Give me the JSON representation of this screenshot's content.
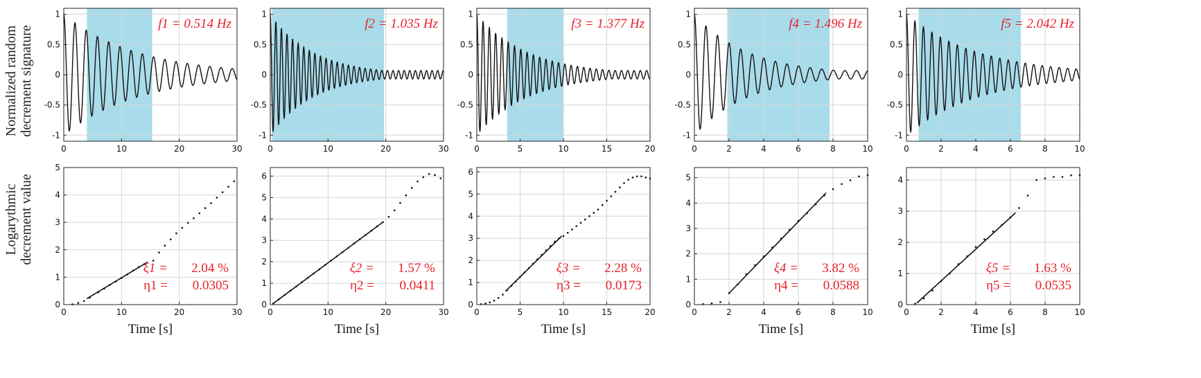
{
  "figure": {
    "ylabel_top": [
      "Normalized random",
      "decrement signature"
    ],
    "ylabel_bottom": [
      "Logarythmic",
      "decrement value"
    ],
    "xlabel": "Time [s]"
  },
  "colors": {
    "band": "#a9dcea",
    "annotation": "#e8202a",
    "trace": "#111111",
    "grid": "#d6d6d6"
  },
  "chart_data": [
    {
      "type": "line",
      "mode": 1,
      "title": "Normalized random decrement signature",
      "freq_label": "f1 = 0.514 Hz",
      "freq": 0.514,
      "xlim": [
        0,
        30
      ],
      "xticks": [
        0,
        10,
        20,
        30
      ],
      "ylim": [
        -1.1,
        1.1
      ],
      "yticks": [
        -1,
        -0.5,
        0,
        0.5,
        1
      ],
      "ytick_labels": [
        "-1",
        "-0.5",
        "0",
        "0.5",
        "1"
      ],
      "fit_window": [
        4,
        15.3
      ],
      "decay_rate": 0.078,
      "log_decrement": {
        "type": "scatter",
        "xlim": [
          0,
          30
        ],
        "xticks": [
          0,
          10,
          20,
          30
        ],
        "ylim": [
          0,
          5
        ],
        "yticks": [
          0,
          1,
          2,
          3,
          4,
          5
        ],
        "xlabel": "Time [s]",
        "fit_line": [
          [
            4,
            0.22
          ],
          [
            14.5,
            1.55
          ]
        ],
        "points": [
          [
            1.5,
            0.01
          ],
          [
            2.5,
            0.06
          ],
          [
            3.5,
            0.13
          ],
          [
            4.5,
            0.25
          ],
          [
            6,
            0.45
          ],
          [
            7,
            0.58
          ],
          [
            8,
            0.72
          ],
          [
            9,
            0.84
          ],
          [
            10,
            0.97
          ],
          [
            11,
            1.1
          ],
          [
            12,
            1.24
          ],
          [
            13,
            1.37
          ],
          [
            14,
            1.48
          ],
          [
            15.5,
            1.6
          ],
          [
            16.5,
            1.9
          ],
          [
            17.5,
            2.15
          ],
          [
            18.5,
            2.38
          ],
          [
            19.5,
            2.6
          ],
          [
            20.5,
            2.8
          ],
          [
            21.5,
            2.98
          ],
          [
            22.5,
            3.15
          ],
          [
            23.5,
            3.33
          ],
          [
            24.5,
            3.52
          ],
          [
            25.5,
            3.7
          ],
          [
            26.5,
            3.9
          ],
          [
            27.5,
            4.1
          ],
          [
            28.5,
            4.3
          ],
          [
            29.5,
            4.5
          ]
        ],
        "zeta_label": "ξ1 =",
        "zeta_value": "2.04 %",
        "eta_label": "η1 =",
        "eta_value": "0.0305"
      }
    },
    {
      "type": "line",
      "mode": 2,
      "title": "Normalized random decrement signature",
      "freq_label": "f2 = 1.035 Hz",
      "freq": 1.035,
      "xlim": [
        0,
        30
      ],
      "xticks": [
        0,
        10,
        20,
        30
      ],
      "ylim": [
        -1.1,
        1.1
      ],
      "yticks": [
        -1,
        -0.5,
        0,
        0.5,
        1
      ],
      "ytick_labels": [
        "-1",
        "-0.5",
        "0",
        "0.5",
        "1"
      ],
      "fit_window": [
        0.3,
        19.7
      ],
      "decay_rate": 0.135,
      "log_decrement": {
        "type": "scatter",
        "xlim": [
          0,
          30
        ],
        "xticks": [
          0,
          10,
          20,
          30
        ],
        "ylim": [
          0,
          6.4
        ],
        "yticks": [
          0,
          1,
          2,
          3,
          4,
          5,
          6
        ],
        "xlabel": "Time [s]",
        "fit_line": [
          [
            0.5,
            0.05
          ],
          [
            19.5,
            3.85
          ]
        ],
        "points": [
          [
            0.5,
            0.05
          ],
          [
            1.5,
            0.25
          ],
          [
            2.5,
            0.45
          ],
          [
            3.5,
            0.65
          ],
          [
            4.5,
            0.85
          ],
          [
            5.5,
            1.05
          ],
          [
            6.5,
            1.25
          ],
          [
            7.5,
            1.45
          ],
          [
            8.5,
            1.65
          ],
          [
            9.5,
            1.85
          ],
          [
            10.5,
            2.05
          ],
          [
            11.5,
            2.25
          ],
          [
            12.5,
            2.45
          ],
          [
            13.5,
            2.65
          ],
          [
            14.5,
            2.85
          ],
          [
            15.5,
            3.05
          ],
          [
            16.5,
            3.25
          ],
          [
            17.5,
            3.45
          ],
          [
            18.5,
            3.65
          ],
          [
            19.5,
            3.85
          ],
          [
            20.5,
            4.1
          ],
          [
            21.5,
            4.4
          ],
          [
            22.5,
            4.75
          ],
          [
            23.5,
            5.1
          ],
          [
            24.5,
            5.45
          ],
          [
            25.5,
            5.75
          ],
          [
            26.5,
            5.95
          ],
          [
            27.5,
            6.1
          ],
          [
            28.5,
            6.05
          ],
          [
            29.5,
            5.9
          ]
        ],
        "zeta_label": "ξ2 =",
        "zeta_value": "1.57 %",
        "eta_label": "η2 =",
        "eta_value": "0.0411"
      }
    },
    {
      "type": "line",
      "mode": 3,
      "title": "Normalized random decrement signature",
      "freq_label": "f3 = 1.377 Hz",
      "freq": 1.377,
      "xlim": [
        0,
        20
      ],
      "xticks": [
        0,
        5,
        10,
        15,
        20
      ],
      "ylim": [
        -1.1,
        1.1
      ],
      "yticks": [
        -1,
        -0.5,
        0,
        0.5,
        1
      ],
      "ytick_labels": [
        "-1",
        "-0.5",
        "0",
        "0.5",
        "1"
      ],
      "fit_window": [
        3.5,
        10
      ],
      "decay_rate": 0.17,
      "log_decrement": {
        "type": "scatter",
        "xlim": [
          0,
          20
        ],
        "xticks": [
          0,
          5,
          10,
          15,
          20
        ],
        "ylim": [
          0,
          6.2
        ],
        "yticks": [
          0,
          1,
          2,
          3,
          4,
          5,
          6
        ],
        "xlabel": "Time [s]",
        "fit_line": [
          [
            3.3,
            0.6
          ],
          [
            9.8,
            3.1
          ]
        ],
        "points": [
          [
            0.5,
            0.02
          ],
          [
            1,
            0.05
          ],
          [
            1.5,
            0.1
          ],
          [
            2,
            0.18
          ],
          [
            2.5,
            0.3
          ],
          [
            3,
            0.45
          ],
          [
            3.5,
            0.65
          ],
          [
            4,
            0.85
          ],
          [
            4.5,
            1.05
          ],
          [
            5,
            1.25
          ],
          [
            5.5,
            1.45
          ],
          [
            6,
            1.65
          ],
          [
            6.5,
            1.85
          ],
          [
            7,
            2.05
          ],
          [
            7.5,
            2.25
          ],
          [
            8,
            2.45
          ],
          [
            8.5,
            2.65
          ],
          [
            9,
            2.85
          ],
          [
            9.5,
            3.0
          ],
          [
            10,
            3.1
          ],
          [
            10.5,
            3.25
          ],
          [
            11,
            3.4
          ],
          [
            11.5,
            3.55
          ],
          [
            12,
            3.7
          ],
          [
            12.5,
            3.85
          ],
          [
            13,
            4.0
          ],
          [
            13.5,
            4.15
          ],
          [
            14,
            4.3
          ],
          [
            14.5,
            4.5
          ],
          [
            15,
            4.7
          ],
          [
            15.5,
            4.9
          ],
          [
            16,
            5.1
          ],
          [
            16.5,
            5.3
          ],
          [
            17,
            5.5
          ],
          [
            17.5,
            5.65
          ],
          [
            18,
            5.75
          ],
          [
            18.5,
            5.8
          ],
          [
            19,
            5.8
          ],
          [
            19.5,
            5.75
          ],
          [
            20,
            5.7
          ]
        ],
        "zeta_label": "ξ3 =",
        "zeta_value": "2.28 %",
        "eta_label": "η3 =",
        "eta_value": "0.0173"
      }
    },
    {
      "type": "line",
      "mode": 4,
      "title": "Normalized random decrement signature",
      "freq_label": "f4 = 1.496 Hz",
      "freq": 1.496,
      "xlim": [
        0,
        10
      ],
      "xticks": [
        0,
        2,
        4,
        6,
        8,
        10
      ],
      "ylim": [
        -1.1,
        1.1
      ],
      "yticks": [
        -1,
        -0.5,
        0,
        0.5,
        1
      ],
      "ytick_labels": [
        "-1",
        "-0.5",
        "0",
        "0.5",
        "1"
      ],
      "fit_window": [
        1.9,
        7.8
      ],
      "decay_rate": 0.32,
      "log_decrement": {
        "type": "scatter",
        "xlim": [
          0,
          10
        ],
        "xticks": [
          0,
          2,
          4,
          6,
          8,
          10
        ],
        "ylim": [
          0,
          5.4
        ],
        "yticks": [
          0,
          1,
          2,
          3,
          4,
          5
        ],
        "xlabel": "Time [s]",
        "fit_line": [
          [
            2,
            0.45
          ],
          [
            7.6,
            4.4
          ]
        ],
        "points": [
          [
            0.5,
            0.02
          ],
          [
            1,
            0.05
          ],
          [
            1.5,
            0.1
          ],
          [
            2,
            0.45
          ],
          [
            2.5,
            0.8
          ],
          [
            3,
            1.2
          ],
          [
            3.5,
            1.55
          ],
          [
            4,
            1.9
          ],
          [
            4.5,
            2.25
          ],
          [
            5,
            2.6
          ],
          [
            5.5,
            2.95
          ],
          [
            6,
            3.3
          ],
          [
            6.5,
            3.6
          ],
          [
            7,
            3.95
          ],
          [
            7.5,
            4.3
          ],
          [
            8,
            4.55
          ],
          [
            8.5,
            4.75
          ],
          [
            9,
            4.9
          ],
          [
            9.5,
            5.05
          ],
          [
            10,
            5.1
          ]
        ],
        "zeta_label": "ξ4 =",
        "zeta_value": "3.82 %",
        "eta_label": "η4 =",
        "eta_value": "0.0588"
      }
    },
    {
      "type": "line",
      "mode": 5,
      "title": "Normalized random decrement signature",
      "freq_label": "f5 = 2.042 Hz",
      "freq": 2.042,
      "xlim": [
        0,
        10
      ],
      "xticks": [
        0,
        2,
        4,
        6,
        8,
        10
      ],
      "ylim": [
        -1.1,
        1.1
      ],
      "yticks": [
        -1,
        -0.5,
        0,
        0.5,
        1
      ],
      "ytick_labels": [
        "-1",
        "-0.5",
        "0",
        "0.5",
        "1"
      ],
      "fit_window": [
        0.7,
        6.6
      ],
      "decay_rate": 0.24,
      "log_decrement": {
        "type": "scatter",
        "xlim": [
          0,
          10
        ],
        "xticks": [
          0,
          2,
          4,
          6,
          8,
          10
        ],
        "ylim": [
          0,
          4.4
        ],
        "yticks": [
          0,
          1,
          2,
          3,
          4
        ],
        "xlabel": "Time [s]",
        "fit_line": [
          [
            0.6,
            0.05
          ],
          [
            6.3,
            2.95
          ]
        ],
        "points": [
          [
            0.5,
            0.03
          ],
          [
            1,
            0.2
          ],
          [
            1.5,
            0.45
          ],
          [
            2,
            0.75
          ],
          [
            2.5,
            1.0
          ],
          [
            3,
            1.3
          ],
          [
            3.5,
            1.55
          ],
          [
            4,
            1.85
          ],
          [
            4.5,
            2.1
          ],
          [
            5,
            2.35
          ],
          [
            5.5,
            2.55
          ],
          [
            6,
            2.8
          ],
          [
            6.5,
            3.1
          ],
          [
            7,
            3.5
          ],
          [
            7.5,
            4.0
          ],
          [
            8,
            4.05
          ],
          [
            8.5,
            4.1
          ],
          [
            9,
            4.1
          ],
          [
            9.5,
            4.15
          ],
          [
            10,
            4.15
          ]
        ],
        "zeta_label": "ξ5 =",
        "zeta_value": "1.63 %",
        "eta_label": "η5 =",
        "eta_value": "0.0535"
      }
    }
  ]
}
